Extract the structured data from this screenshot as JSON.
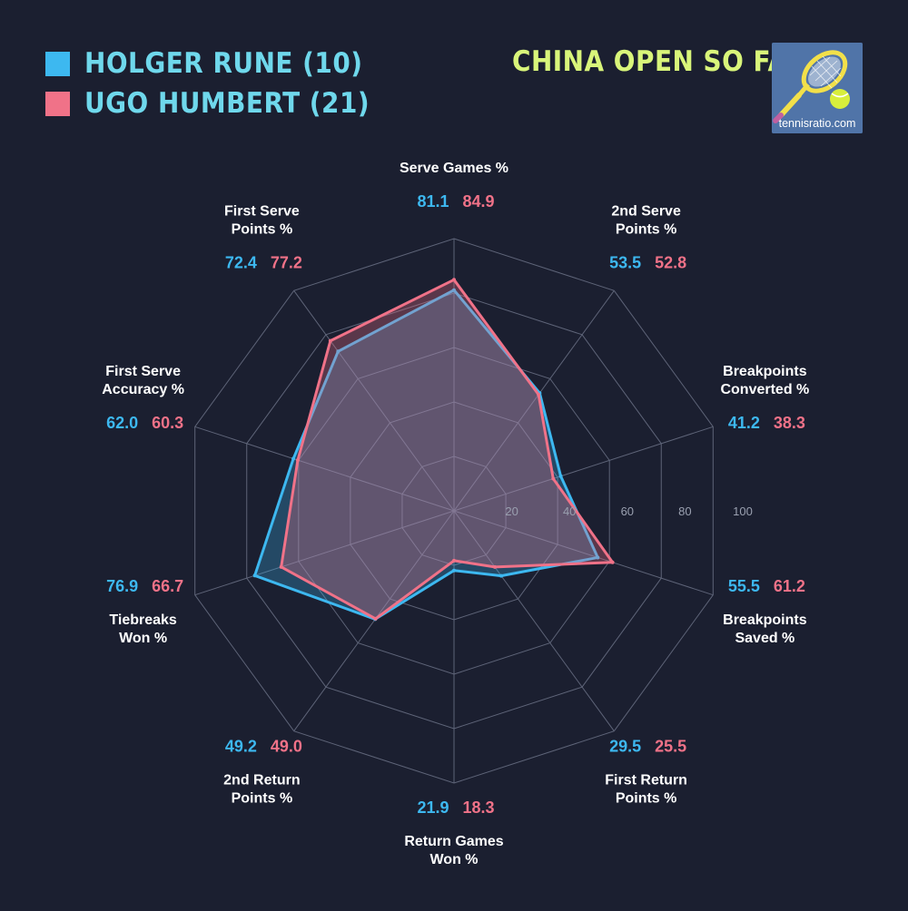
{
  "title": "CHINA OPEN SO FAR",
  "logo": {
    "text": "tennisratio.com",
    "icon": "tennis-racket-ball-icon"
  },
  "colors": {
    "rune": "#3db8f0",
    "humbert": "#f07288",
    "background": "#1b1f30",
    "title": "#d9f57a",
    "legend_text": "#6fd8ec"
  },
  "chart_data": {
    "type": "radar",
    "rmax": 100,
    "ring_ticks": [
      20,
      40,
      60,
      80,
      100
    ],
    "axes": [
      [
        "Serve Games %"
      ],
      [
        "2nd Serve",
        "Points %"
      ],
      [
        "Breakpoints",
        "Converted %"
      ],
      [
        "Breakpoints",
        "Saved %"
      ],
      [
        "First Return",
        "Points %"
      ],
      [
        "Return Games",
        "Won %"
      ],
      [
        "2nd Return",
        "Points %"
      ],
      [
        "Tiebreaks",
        "Won %"
      ],
      [
        "First Serve",
        "Accuracy %"
      ],
      [
        "First Serve",
        "Points %"
      ]
    ],
    "series": [
      {
        "name": "HOLGER RUNE (10)",
        "values": [
          81.1,
          53.5,
          41.2,
          55.5,
          29.5,
          21.9,
          49.2,
          76.9,
          62.0,
          72.4
        ]
      },
      {
        "name": "UGO HUMBERT (21)",
        "values": [
          84.9,
          52.8,
          38.3,
          61.2,
          25.5,
          18.3,
          49.0,
          66.7,
          60.3,
          77.2
        ]
      }
    ]
  }
}
